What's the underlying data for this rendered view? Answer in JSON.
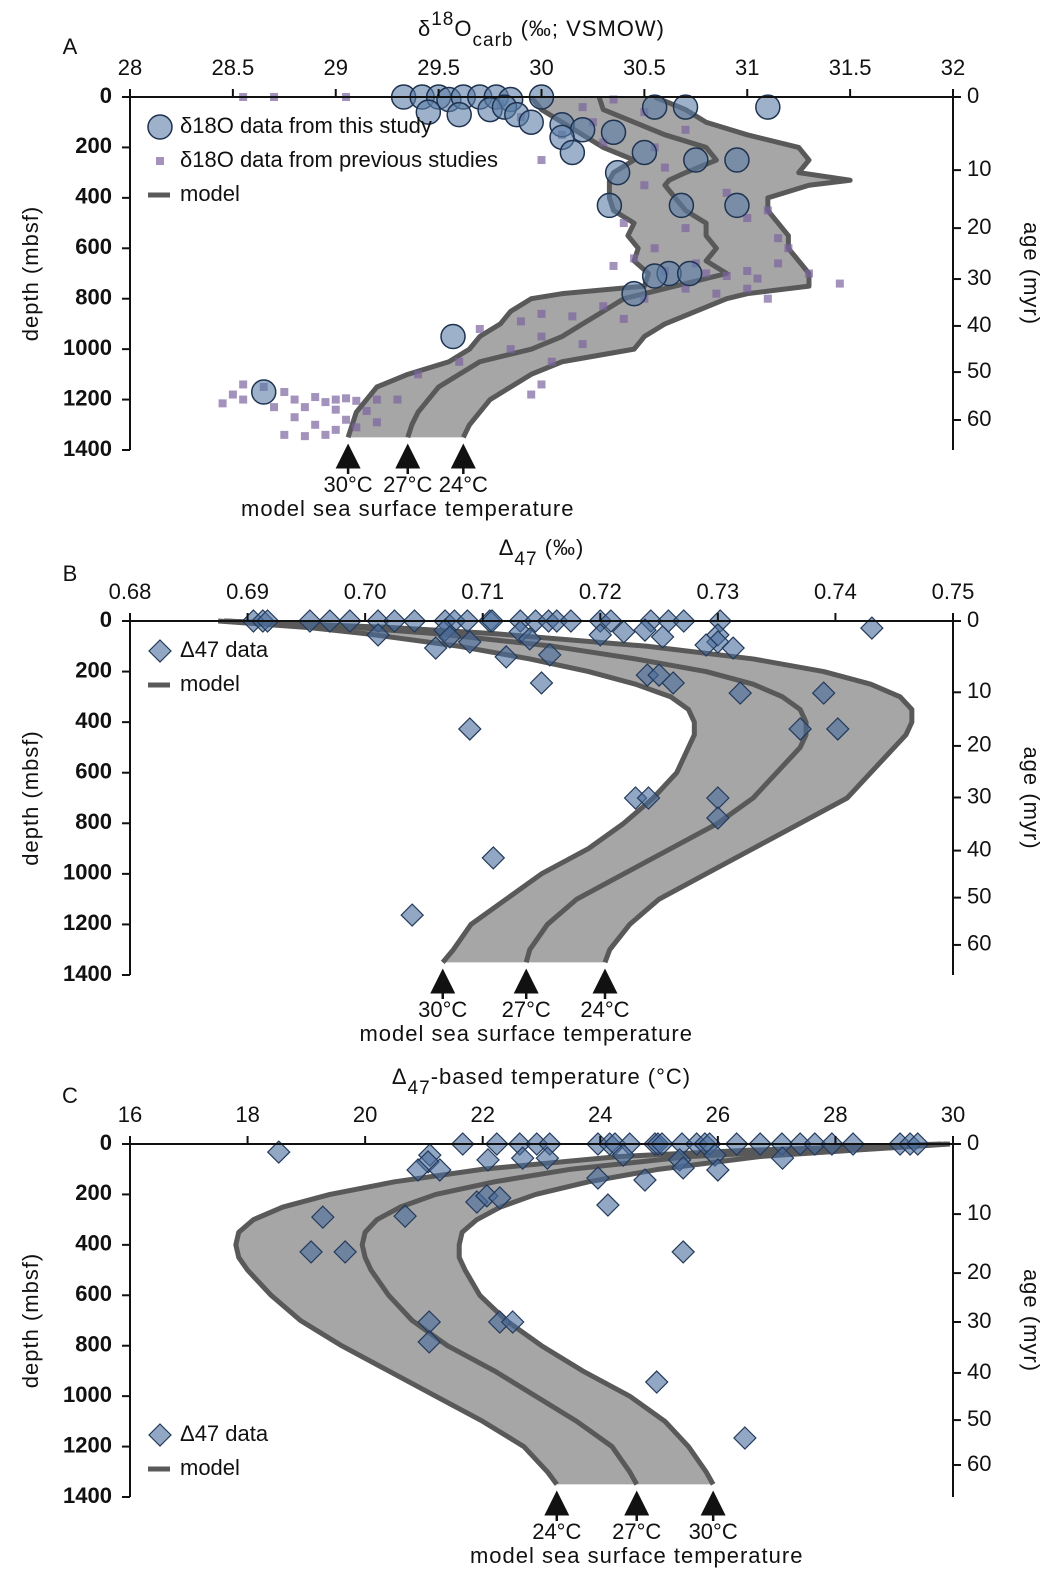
{
  "chart_data": [
    {
      "type": "scatter",
      "panel": "A",
      "title": [
        {
          "text": "δ"
        },
        {
          "text": "18",
          "shift": "sup"
        },
        {
          "text": "O"
        },
        {
          "text": "carb",
          "shift": "sub"
        },
        {
          "text": " (‰; VSMOW)"
        }
      ],
      "ylabel": "depth (mbsf)",
      "y2label": "age (myr)",
      "xlim": [
        28,
        32
      ],
      "xticks": [
        28,
        28.5,
        29,
        29.5,
        30,
        30.5,
        31,
        31.5,
        32
      ],
      "xtick_color": "#111111",
      "ylim": [
        0,
        1400
      ],
      "yticks": [
        0,
        200,
        400,
        600,
        800,
        1000,
        1200,
        1400
      ],
      "y_inverted": true,
      "y2ticks": [
        0,
        10,
        20,
        30,
        40,
        50,
        60
      ],
      "y2_depth": [
        0,
        290,
        520,
        722,
        908,
        1091,
        1281
      ],
      "legend": {
        "corner": "upper left",
        "model_label": "model"
      },
      "band_color": "#a6a6a6",
      "annotation": "model sea surface temperature",
      "model_depth": [
        0,
        50,
        100,
        150,
        200,
        250,
        300,
        330,
        350,
        400,
        450,
        500,
        550,
        600,
        650,
        700,
        750,
        780,
        800,
        850,
        900,
        950,
        1000,
        1050,
        1100,
        1150,
        1200,
        1250,
        1300,
        1350
      ],
      "series": [
        {
          "name": "δ18O data from this study",
          "marker": "circle",
          "color": "#5b7fa6",
          "x": [
            29.33,
            29.42,
            29.5,
            29.55,
            29.62,
            29.7,
            29.78,
            29.85,
            30.0,
            29.45,
            29.6,
            29.75,
            29.82,
            29.88,
            29.95,
            30.1,
            30.2,
            30.1,
            30.35,
            30.15,
            30.5,
            30.37,
            30.33,
            30.55,
            30.7,
            31.1,
            30.75,
            30.95,
            30.68,
            30.95,
            30.62,
            30.55,
            30.72,
            30.45,
            29.57,
            28.65
          ],
          "y": [
            0,
            0,
            0,
            10,
            0,
            0,
            0,
            10,
            0,
            60,
            70,
            50,
            40,
            70,
            100,
            110,
            130,
            160,
            140,
            220,
            220,
            300,
            430,
            40,
            40,
            40,
            250,
            250,
            430,
            430,
            700,
            710,
            700,
            780,
            950,
            1170
          ]
        },
        {
          "name": "δ18O data from previous studies",
          "marker": "square",
          "color": "#7b64a0",
          "x": [
            28.55,
            28.7,
            29.05,
            29.8,
            30.2,
            30.35,
            30.5,
            30.25,
            29.9,
            30.1,
            30.3,
            30.55,
            30.6,
            30.0,
            30.7,
            30.5,
            30.9,
            31.1,
            30.4,
            30.7,
            31.15,
            30.55,
            31.2,
            31.0,
            30.35,
            30.45,
            30.6,
            30.75,
            30.8,
            30.9,
            31.0,
            31.05,
            31.15,
            31.3,
            31.45,
            30.7,
            30.85,
            31.0,
            31.1,
            30.5,
            30.3,
            30.0,
            30.15,
            29.9,
            30.4,
            29.7,
            30.0,
            30.2,
            29.85,
            30.05,
            29.6,
            30.0,
            29.4,
            29.95,
            28.5,
            28.55,
            28.65,
            28.75,
            28.8,
            28.9,
            28.95,
            29.0,
            29.05,
            29.1,
            29.2,
            29.3,
            28.7,
            28.85,
            29.0,
            29.15,
            28.8,
            29.05,
            29.2,
            28.75,
            28.85,
            28.95,
            29.0,
            28.9,
            29.1,
            28.55,
            28.45
          ],
          "y": [
            0,
            0,
            0,
            30,
            40,
            10,
            60,
            100,
            80,
            150,
            180,
            200,
            280,
            250,
            130,
            350,
            380,
            450,
            500,
            520,
            560,
            600,
            600,
            480,
            670,
            640,
            690,
            660,
            700,
            710,
            690,
            720,
            660,
            700,
            740,
            760,
            780,
            760,
            800,
            800,
            830,
            860,
            870,
            890,
            880,
            920,
            950,
            980,
            1000,
            1050,
            1050,
            1140,
            1100,
            1180,
            1180,
            1140,
            1150,
            1170,
            1200,
            1190,
            1210,
            1200,
            1195,
            1205,
            1200,
            1200,
            1230,
            1230,
            1240,
            1245,
            1270,
            1280,
            1290,
            1340,
            1345,
            1340,
            1320,
            1300,
            1310,
            1200,
            1215
          ]
        },
        {
          "name": "30°C",
          "marker": "line",
          "color": "#595959",
          "x": [
            29.95,
            30.0,
            30.1,
            30.2,
            30.3,
            30.45,
            30.35,
            30.33,
            30.33,
            30.33,
            30.35,
            30.45,
            30.42,
            30.47,
            30.45,
            30.52,
            30.5,
            30.1,
            29.95,
            29.85,
            29.8,
            29.7,
            29.65,
            29.55,
            29.35,
            29.2,
            29.15,
            29.1,
            29.08,
            29.06
          ]
        },
        {
          "name": "27°C",
          "marker": "line",
          "color": "#595959",
          "x": [
            30.28,
            30.3,
            30.45,
            30.6,
            30.8,
            30.85,
            30.7,
            30.62,
            30.6,
            30.65,
            30.7,
            30.8,
            30.8,
            30.85,
            30.8,
            30.9,
            30.65,
            30.5,
            30.4,
            30.3,
            30.2,
            30.1,
            29.95,
            29.7,
            29.6,
            29.5,
            29.45,
            29.4,
            29.37,
            29.35
          ]
        },
        {
          "name": "24°C",
          "marker": "line",
          "color": "#595959",
          "x": [
            30.55,
            30.7,
            30.8,
            31.0,
            31.25,
            31.3,
            31.25,
            31.5,
            31.3,
            31.1,
            31.1,
            31.15,
            31.2,
            31.2,
            31.25,
            31.3,
            31.3,
            31.0,
            30.9,
            30.75,
            30.6,
            30.5,
            30.45,
            30.1,
            29.95,
            29.85,
            29.75,
            29.7,
            29.65,
            29.62
          ]
        }
      ]
    },
    {
      "type": "scatter",
      "panel": "B",
      "title": [
        {
          "text": "Δ"
        },
        {
          "text": "47",
          "shift": "sub"
        },
        {
          "text": " (‰)"
        }
      ],
      "ylabel": "depth (mbsf)",
      "y2label": "age (myr)",
      "xlim": [
        0.68,
        0.75
      ],
      "xticks": [
        0.68,
        0.69,
        {
          "value": 0.7,
          "label": "0.70"
        },
        0.71,
        0.72,
        0.73,
        0.74,
        0.75
      ],
      "xtick_color": "#5a1414",
      "ylim": [
        0,
        1400
      ],
      "yticks": [
        0,
        200,
        400,
        600,
        800,
        1000,
        1200,
        1400
      ],
      "y_inverted": true,
      "y2ticks": [
        0,
        10,
        20,
        30,
        40,
        50,
        60
      ],
      "y2_depth": [
        0,
        282,
        494,
        698,
        908,
        1094,
        1281
      ],
      "legend": {
        "corner": "upper left",
        "model_label": "model"
      },
      "band_color": "#a6a6a6",
      "annotation": "model sea surface temperature",
      "model_depth": [
        0,
        25,
        50,
        100,
        150,
        200,
        250,
        300,
        350,
        400,
        450,
        500,
        600,
        700,
        800,
        900,
        1000,
        1100,
        1200,
        1300,
        1350
      ],
      "series": [
        {
          "name": "Δ47 data",
          "marker": "diamond",
          "color": "#4a6d9c",
          "x": [
            0.6905,
            0.6913,
            0.6917,
            0.6953,
            0.697,
            0.6987,
            0.7011,
            0.7025,
            0.7042,
            0.7068,
            0.7076,
            0.7087,
            0.7106,
            0.7108,
            0.7132,
            0.7145,
            0.7156,
            0.7163,
            0.7175,
            0.72,
            0.7209,
            0.7243,
            0.7258,
            0.7271,
            0.7302,
            0.7431,
            0.73,
            0.73,
            0.7313,
            0.729,
            0.72,
            0.722,
            0.7238,
            0.7253,
            0.7011,
            0.7068,
            0.7072,
            0.706,
            0.7089,
            0.7132,
            0.714,
            0.712,
            0.7157,
            0.715,
            0.724,
            0.725,
            0.7262,
            0.7319,
            0.739,
            0.737,
            0.7402,
            0.7089,
            0.723,
            0.7241,
            0.73,
            0.73,
            0.7109,
            0.704
          ],
          "y": [
            0,
            0,
            0,
            0,
            0,
            0,
            0,
            0,
            0,
            0,
            0,
            0,
            0,
            0,
            0,
            0,
            0,
            0,
            0,
            0,
            0,
            0,
            0,
            0,
            0,
            28,
            55,
            83,
            107,
            95,
            55,
            43,
            36,
            63,
            55,
            36,
            63,
            107,
            83,
            43,
            71,
            142,
            134,
            245,
            214,
            214,
            245,
            285,
            285,
            427,
            427,
            427,
            700,
            700,
            700,
            779,
            937,
            1163
          ]
        },
        {
          "name": "30°C",
          "marker": "line",
          "color": "#595959",
          "x": [
            0.6875,
            0.695,
            0.7,
            0.708,
            0.714,
            0.719,
            0.723,
            0.726,
            0.7275,
            0.728,
            0.728,
            0.7275,
            0.7265,
            0.7245,
            0.722,
            0.719,
            0.715,
            0.712,
            0.709,
            0.7075,
            0.7066
          ]
        },
        {
          "name": "27°C",
          "marker": "line",
          "color": "#595959",
          "x": [
            0.688,
            0.699,
            0.706,
            0.716,
            0.723,
            0.729,
            0.733,
            0.7355,
            0.737,
            0.7375,
            0.7375,
            0.737,
            0.735,
            0.733,
            0.73,
            0.726,
            0.722,
            0.718,
            0.7155,
            0.714,
            0.7137
          ]
        },
        {
          "name": "24°C",
          "marker": "line",
          "color": "#595959",
          "x": [
            0.688,
            0.702,
            0.711,
            0.724,
            0.733,
            0.739,
            0.743,
            0.7455,
            0.7465,
            0.7465,
            0.746,
            0.745,
            0.743,
            0.741,
            0.737,
            0.733,
            0.729,
            0.725,
            0.7225,
            0.7208,
            0.7204
          ]
        }
      ]
    },
    {
      "type": "scatter",
      "panel": "C",
      "title": [
        {
          "text": "Δ"
        },
        {
          "text": "47",
          "shift": "sub"
        },
        {
          "text": "-based temperature (°C)"
        }
      ],
      "ylabel": "depth (mbsf)",
      "y2label": "age (myr)",
      "xlim": [
        16,
        30
      ],
      "xticks": [
        16,
        18,
        20,
        22,
        24,
        26,
        28,
        30
      ],
      "xtick_color": "#111111",
      "ylim": [
        0,
        1400
      ],
      "yticks": [
        0,
        200,
        400,
        600,
        800,
        1000,
        1200,
        1400
      ],
      "y_inverted": true,
      "y2ticks": [
        0,
        10,
        20,
        30,
        40,
        50,
        60
      ],
      "y2_depth": [
        0,
        278,
        512,
        706,
        908,
        1095,
        1273
      ],
      "legend": {
        "corner": "lower left",
        "model_label": "model"
      },
      "band_color": "#a6a6a6",
      "annotation": "model sea surface temperature",
      "model_depth": [
        0,
        25,
        50,
        100,
        150,
        200,
        250,
        300,
        350,
        400,
        450,
        500,
        600,
        700,
        800,
        900,
        1000,
        1100,
        1200,
        1300,
        1350
      ],
      "series": [
        {
          "name": "Δ47 data",
          "marker": "diamond",
          "color": "#4a6d9c",
          "x": [
            21.66,
            22.24,
            22.63,
            22.92,
            23.14,
            23.96,
            24.16,
            24.25,
            24.5,
            24.93,
            24.98,
            25.05,
            25.39,
            25.64,
            25.78,
            25.86,
            26.32,
            26.72,
            27.09,
            27.4,
            27.65,
            27.94,
            28.3,
            29.1,
            29.27,
            29.4,
            18.53,
            21.1,
            21.07,
            20.9,
            21.27,
            22.09,
            22.68,
            23.1,
            24.39,
            25.95,
            27.1,
            25.35,
            25.41,
            26.0,
            23.96,
            24.76,
            21.9,
            22.07,
            22.29,
            24.13,
            20.68,
            19.28,
            19.08,
            19.66,
            25.41,
            21.09,
            21.09,
            22.29,
            22.51,
            24.96,
            26.46
          ],
          "y": [
            0,
            0,
            0,
            0,
            0,
            0,
            0,
            0,
            0,
            0,
            0,
            0,
            0,
            0,
            0,
            0,
            0,
            0,
            0,
            0,
            0,
            0,
            0,
            0,
            0,
            0,
            32,
            44,
            71,
            103,
            103,
            63,
            56,
            56,
            44,
            44,
            56,
            63,
            95,
            103,
            135,
            143,
            230,
            206,
            214,
            242,
            286,
            290,
            428,
            428,
            428,
            706,
            785,
            706,
            706,
            944,
            1166
          ]
        },
        {
          "name": "24°C",
          "marker": "line",
          "color": "#595959",
          "x": [
            29.8,
            26.5,
            24.3,
            22.0,
            20.5,
            19.4,
            18.6,
            18.1,
            17.85,
            17.8,
            17.85,
            18.0,
            18.4,
            18.9,
            19.6,
            20.4,
            21.2,
            22.0,
            22.7,
            23.1,
            23.26
          ]
        },
        {
          "name": "27°C",
          "marker": "line",
          "color": "#595959",
          "x": [
            29.9,
            27.5,
            25.5,
            23.5,
            22.2,
            21.2,
            20.6,
            20.2,
            20.0,
            19.95,
            20.0,
            20.1,
            20.4,
            20.8,
            21.4,
            22.2,
            22.9,
            23.6,
            24.2,
            24.5,
            24.62
          ]
        },
        {
          "name": "30°C",
          "marker": "line",
          "color": "#595959",
          "x": [
            29.95,
            28.3,
            26.7,
            25.0,
            23.8,
            22.9,
            22.3,
            21.9,
            21.65,
            21.6,
            21.6,
            21.7,
            21.95,
            22.4,
            23.0,
            23.7,
            24.5,
            25.1,
            25.5,
            25.8,
            25.92
          ]
        }
      ]
    }
  ]
}
